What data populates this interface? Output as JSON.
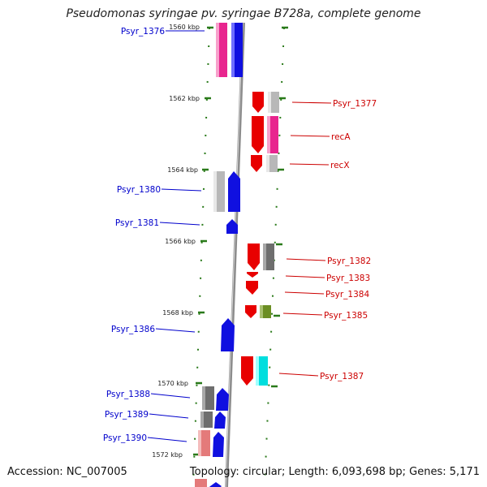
{
  "title": "Pseudomonas syringae pv. syringae B728a, complete genome",
  "accession": "Accession: NC_007005",
  "summary": "Topology: circular; Length: 6,093,698 bp; Genes: 5,171",
  "kbp_ticks": [
    "1560 kbp",
    "1562 kbp",
    "1564 kbp",
    "1566 kbp",
    "1568 kbp",
    "1570 kbp",
    "1572 kbp"
  ],
  "colors": {
    "reverse_label": "#0000cc",
    "forward_label": "#cc0000",
    "tick": "#2a7a1a",
    "backbone": "#999999"
  },
  "left_genes": [
    "Psyr_1376",
    "Psyr_1380",
    "Psyr_1381",
    "Psyr_1386",
    "Psyr_1388",
    "Psyr_1389",
    "Psyr_1390"
  ],
  "right_genes": [
    "Psyr_1377",
    "recA",
    "recX",
    "Psyr_1382",
    "Psyr_1383",
    "Psyr_1384",
    "Psyr_1385",
    "Psyr_1387"
  ]
}
